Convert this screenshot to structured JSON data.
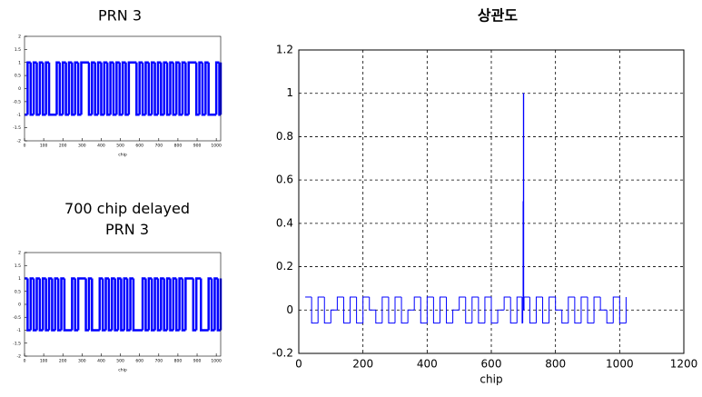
{
  "chart_data": [
    {
      "type": "line",
      "step": true,
      "title": "PRN 3",
      "xlabel": "chip",
      "color": "#0000ff",
      "grid": false,
      "xlim": [
        0,
        1023
      ],
      "ylim": [
        -2,
        2
      ],
      "xticks": [
        0,
        100,
        200,
        300,
        400,
        500,
        600,
        700,
        800,
        900,
        1000
      ],
      "yticks": [
        -2,
        -1.5,
        -1,
        -0.5,
        0,
        0.5,
        1,
        1.5,
        2
      ],
      "x": [
        0,
        16,
        32,
        48,
        64,
        80,
        96,
        112,
        128,
        168,
        184,
        200,
        216,
        232,
        248,
        264,
        280,
        296,
        336,
        352,
        368,
        384,
        400,
        416,
        432,
        448,
        464,
        480,
        496,
        512,
        528,
        544,
        584,
        600,
        616,
        632,
        648,
        664,
        680,
        696,
        712,
        728,
        744,
        760,
        776,
        792,
        808,
        824,
        840,
        856,
        896,
        912,
        928,
        944,
        960,
        1000,
        1016,
        1023
      ],
      "values": [
        -1,
        1,
        -1,
        1,
        -1,
        1,
        -1,
        1,
        -1,
        1,
        -1,
        1,
        -1,
        1,
        -1,
        1,
        -1,
        1,
        -1,
        1,
        -1,
        1,
        -1,
        1,
        -1,
        1,
        -1,
        1,
        -1,
        1,
        -1,
        1,
        -1,
        1,
        -1,
        1,
        -1,
        1,
        -1,
        1,
        -1,
        1,
        -1,
        1,
        -1,
        1,
        -1,
        1,
        -1,
        1,
        -1,
        1,
        -1,
        1,
        -1,
        1,
        -1,
        1
      ]
    },
    {
      "type": "line",
      "step": true,
      "title": "700 chip delayed\nPRN 3",
      "xlabel": "chip",
      "color": "#0000ff",
      "grid": false,
      "xlim": [
        0,
        1023
      ],
      "ylim": [
        -2,
        2
      ],
      "xticks": [
        0,
        100,
        200,
        300,
        400,
        500,
        600,
        700,
        800,
        900,
        1000
      ],
      "yticks": [
        -2,
        -1.5,
        -1,
        -0.5,
        0,
        0.5,
        1,
        1.5,
        2
      ],
      "x": [
        0,
        16,
        32,
        48,
        64,
        80,
        96,
        112,
        128,
        144,
        160,
        176,
        192,
        208,
        248,
        264,
        280,
        320,
        336,
        352,
        392,
        408,
        424,
        440,
        456,
        472,
        488,
        504,
        520,
        536,
        552,
        568,
        616,
        632,
        648,
        664,
        680,
        696,
        712,
        728,
        744,
        760,
        776,
        792,
        808,
        824,
        840,
        880,
        896,
        920,
        960,
        976,
        992,
        1008,
        1023
      ],
      "values": [
        1,
        -1,
        1,
        -1,
        1,
        -1,
        1,
        -1,
        1,
        -1,
        1,
        -1,
        1,
        -1,
        1,
        -1,
        1,
        -1,
        1,
        -1,
        1,
        -1,
        1,
        -1,
        1,
        -1,
        1,
        -1,
        1,
        -1,
        1,
        -1,
        1,
        -1,
        1,
        -1,
        1,
        -1,
        1,
        -1,
        1,
        -1,
        1,
        -1,
        1,
        -1,
        1,
        -1,
        1,
        -1,
        1,
        -1,
        1,
        -1,
        1
      ]
    },
    {
      "type": "line",
      "step": true,
      "title": "상관도",
      "xlabel": "chip",
      "color": "#0000ff",
      "grid": true,
      "xlim": [
        0,
        1200
      ],
      "ylim": [
        -0.2,
        1.2
      ],
      "xticks": [
        0,
        200,
        400,
        600,
        800,
        1000,
        1200
      ],
      "yticks": [
        -0.2,
        0,
        0.2,
        0.4,
        0.6,
        0.8,
        1,
        1.2
      ],
      "x": [
        20,
        40,
        60,
        80,
        100,
        120,
        140,
        160,
        180,
        200,
        220,
        240,
        260,
        280,
        300,
        320,
        340,
        360,
        380,
        400,
        420,
        440,
        460,
        480,
        500,
        520,
        540,
        560,
        580,
        600,
        620,
        640,
        660,
        680,
        696,
        698,
        699,
        700,
        701,
        702,
        720,
        740,
        760,
        780,
        800,
        820,
        840,
        860,
        880,
        900,
        920,
        940,
        960,
        980,
        1000,
        1020
      ],
      "values": [
        0.06,
        -0.06,
        0.06,
        -0.06,
        0,
        0.06,
        -0.06,
        0.06,
        -0.06,
        0.06,
        0,
        -0.06,
        0.06,
        -0.06,
        0.06,
        -0.06,
        0,
        0.06,
        -0.06,
        0.06,
        -0.06,
        0.06,
        -0.06,
        0,
        0.06,
        -0.06,
        0.06,
        -0.06,
        0.06,
        -0.06,
        0,
        0.06,
        -0.06,
        0.06,
        -0.06,
        0,
        0.5,
        1,
        0,
        0.06,
        -0.06,
        0.06,
        -0.06,
        0.06,
        0,
        -0.06,
        0.06,
        -0.06,
        0.06,
        -0.06,
        0.06,
        0,
        -0.06,
        0.06,
        -0.06,
        0.06
      ]
    }
  ]
}
